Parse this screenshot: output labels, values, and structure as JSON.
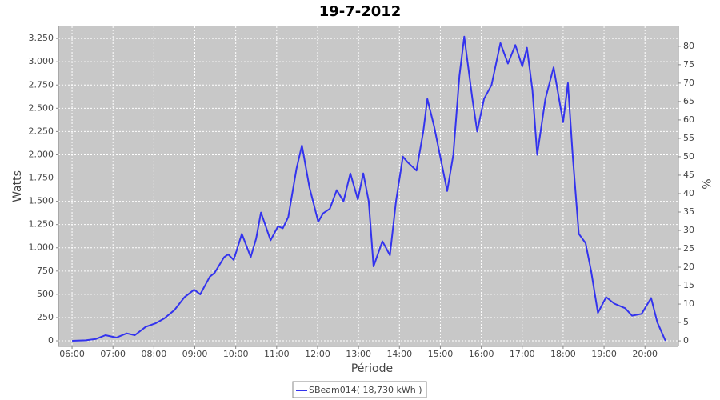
{
  "chart_data": {
    "type": "line",
    "title": "19-7-2012",
    "x_label": "Période",
    "y_label": "Watts",
    "y2_label": "%",
    "x": [
      "06:00",
      "06:20",
      "06:35",
      "06:49",
      "07:05",
      "07:20",
      "07:32",
      "07:48",
      "08:03",
      "08:15",
      "08:30",
      "08:45",
      "08:59",
      "09:08",
      "09:22",
      "09:29",
      "09:43",
      "09:49",
      "09:57",
      "10:09",
      "10:22",
      "10:30",
      "10:37",
      "10:51",
      "11:02",
      "11:09",
      "11:17",
      "11:29",
      "11:37",
      "11:48",
      "12:01",
      "12:08",
      "12:18",
      "12:28",
      "12:38",
      "12:48",
      "12:59",
      "13:07",
      "13:15",
      "13:22",
      "13:35",
      "13:46",
      "13:55",
      "14:05",
      "14:12",
      "14:25",
      "14:35",
      "14:41",
      "14:51",
      "15:10",
      "15:19",
      "15:28",
      "15:35",
      "15:47",
      "15:54",
      "16:04",
      "16:15",
      "16:28",
      "16:39",
      "16:50",
      "17:00",
      "17:07",
      "17:15",
      "17:22",
      "17:34",
      "17:46",
      "18:00",
      "18:07",
      "18:14",
      "18:23",
      "18:33",
      "18:41",
      "18:51",
      "19:03",
      "19:15",
      "19:31",
      "19:41",
      "19:55",
      "20:09",
      "20:18",
      "20:30"
    ],
    "series": [
      {
        "name": "SBeam014( 18,730 kWh )",
        "color": "#3333ee",
        "values": [
          0,
          5,
          20,
          60,
          35,
          80,
          60,
          150,
          190,
          240,
          330,
          470,
          550,
          500,
          690,
          730,
          900,
          930,
          870,
          1150,
          900,
          1100,
          1380,
          1080,
          1230,
          1210,
          1330,
          1850,
          2100,
          1650,
          1280,
          1370,
          1420,
          1620,
          1500,
          1800,
          1520,
          1800,
          1500,
          800,
          1070,
          920,
          1500,
          1980,
          1920,
          1830,
          2250,
          2600,
          2300,
          1610,
          2000,
          2850,
          3270,
          2600,
          2250,
          2600,
          2750,
          3200,
          2980,
          3180,
          2950,
          3150,
          2700,
          2000,
          2600,
          2940,
          2350,
          2770,
          2000,
          1150,
          1050,
          750,
          300,
          470,
          400,
          350,
          270,
          290,
          460,
          200,
          0
        ]
      }
    ],
    "xlim": [
      "05:40",
      "20:49"
    ],
    "xticks": [
      "06:00",
      "07:00",
      "08:00",
      "09:00",
      "10:00",
      "11:00",
      "12:00",
      "13:00",
      "14:00",
      "15:00",
      "16:00",
      "17:00",
      "18:00",
      "19:00",
      "20:00"
    ],
    "ylim": [
      -60,
      3380
    ],
    "yticks": [
      0,
      250,
      500,
      750,
      {
        "value": 1000,
        "label": "1.000"
      },
      {
        "value": 1250,
        "label": "1.250"
      },
      {
        "value": 1500,
        "label": "1.500"
      },
      {
        "value": 1750,
        "label": "1.750"
      },
      {
        "value": 2000,
        "label": "2.000"
      },
      {
        "value": 2250,
        "label": "2.250"
      },
      {
        "value": 2500,
        "label": "2.500"
      },
      {
        "value": 2750,
        "label": "2.750"
      },
      {
        "value": 3000,
        "label": "3.000"
      },
      {
        "value": 3250,
        "label": "3.250"
      }
    ],
    "y2lim": [
      -1.5,
      85.4
    ],
    "y2ticks": [
      0,
      5,
      10,
      15,
      20,
      25,
      30,
      35,
      40,
      45,
      50,
      55,
      60,
      65,
      70,
      75,
      80
    ],
    "grid": true
  }
}
